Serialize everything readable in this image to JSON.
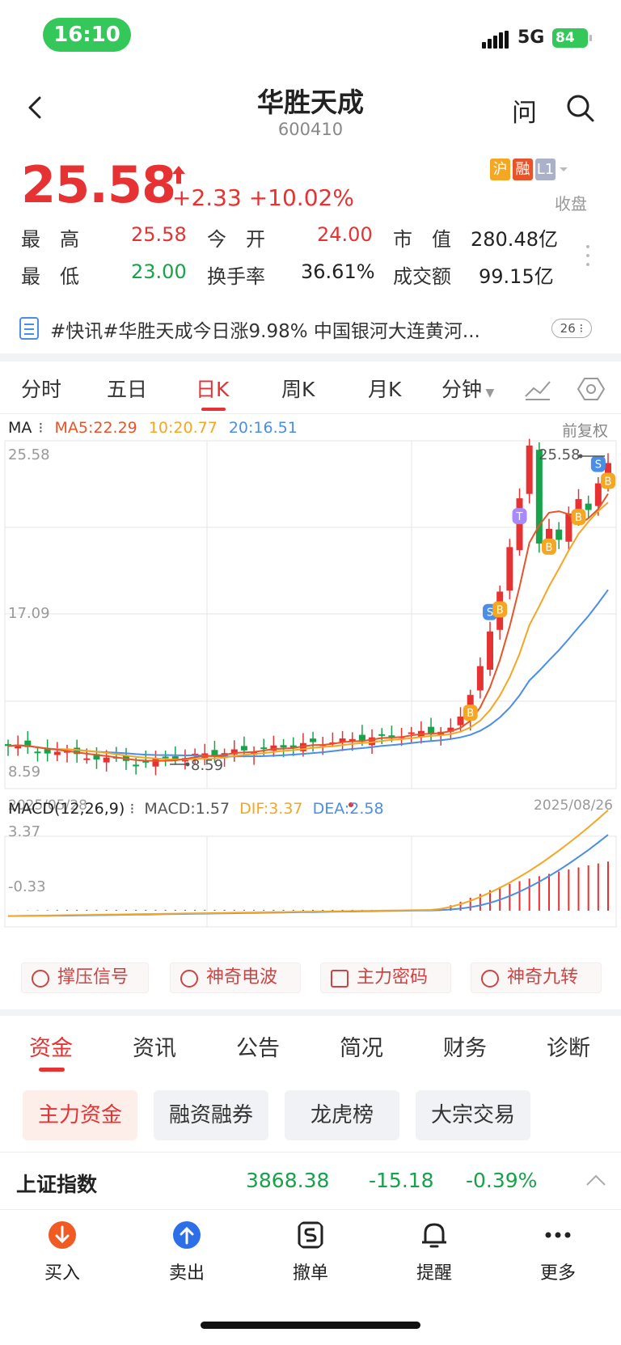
{
  "status": {
    "time": "16:10",
    "network": "5G",
    "battery": "84"
  },
  "header": {
    "title": "华胜天成",
    "code": "600410",
    "ask_label": "问"
  },
  "quote": {
    "price": "25.58",
    "change": "+2.33",
    "change_pct": "+10.02%",
    "tags": [
      {
        "text": "沪",
        "color": "#f5a623"
      },
      {
        "text": "融",
        "color": "#e8542a"
      },
      {
        "text": "L1",
        "color": "#a9b2c9"
      }
    ],
    "status": "收盘"
  },
  "stats": {
    "high_label": "最　高",
    "high": "25.58",
    "open_label": "今　开",
    "open": "24.00",
    "mcap_label": "市　值",
    "mcap": "280.48亿",
    "low_label": "最　低",
    "low": "23.00",
    "turnover_label": "换手率",
    "turnover": "36.61%",
    "amount_label": "成交额",
    "amount": "99.15亿"
  },
  "news": {
    "text": "#快讯#华胜天成今日涨9.98% 中国银河大连黄河...",
    "count": "26"
  },
  "kline_tabs": [
    "分时",
    "五日",
    "日K",
    "周K",
    "月K",
    "分钟"
  ],
  "active_kline_tab": "日K",
  "chart": {
    "ma_label": "MA",
    "ma5": "MA5:22.29",
    "ma10": "10:20.77",
    "ma20": "20:16.51",
    "adjust": "前复权",
    "y_top": "25.58",
    "y_mid": "17.09",
    "y_bot": "8.59",
    "max_marker": "25.58",
    "min_marker": "8.59",
    "date_start": "2025/05/28",
    "date_end": "2025/08/26",
    "macd_title": "MACD(12,26,9)",
    "macd": "MACD:1.57",
    "dif": "DIF:3.37",
    "dea": "DEA:2.58",
    "macd_top": "3.37",
    "macd_bot": "-0.33",
    "colors": {
      "up": "#e63232",
      "down": "#16a34a",
      "ma5": "#e8542a",
      "ma10": "#f5a623",
      "ma20": "#4a8ee8"
    }
  },
  "tools": [
    "撑压信号",
    "神奇电波",
    "主力密码",
    "神奇九转"
  ],
  "bottom_tabs": [
    "资金",
    "资讯",
    "公告",
    "简况",
    "财务",
    "诊断"
  ],
  "active_bottom_tab": "资金",
  "chips": [
    "主力资金",
    "融资融券",
    "龙虎榜",
    "大宗交易"
  ],
  "index": {
    "name": "上证指数",
    "value": "3868.38",
    "change": "-15.18",
    "pct": "-0.39%"
  },
  "actions": [
    {
      "label": "买入",
      "icon": "buy-icon"
    },
    {
      "label": "卖出",
      "icon": "sell-icon"
    },
    {
      "label": "撤单",
      "icon": "cancel-order-icon"
    },
    {
      "label": "提醒",
      "icon": "bell-icon"
    },
    {
      "label": "更多",
      "icon": "more-icon"
    }
  ]
}
